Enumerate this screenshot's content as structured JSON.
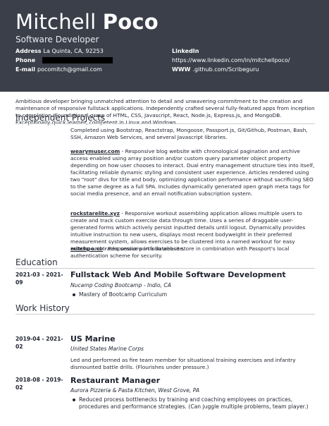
{
  "header": {
    "first_name": "Mitchell",
    "last_name": "Poco",
    "title": "Software Developer",
    "address_label": "Address",
    "address": "La Quinta, CA, 92253",
    "phone_label": "Phone",
    "email_label": "E-mail",
    "email": "pocomitch@gmail.com",
    "linkedin_label": "LinkedIn",
    "linkedin_url": "https://www.linkedin.com/in/mitchellpoco/",
    "www_label": "WWW",
    "www_url": ".github.com/Scribeguru"
  },
  "summary": "Ambitious developer bringing unmatched attention to detail and unwavering commitment to the creation and maintenance of responsive fullstack applications. Independently crafted several fully-featured apps from inception to completion. Foundational grasp of HTML, CSS, Javascript, React, Node.js, Express.js, and MongoDB. Exceptionally quick learner, competent in Linux and Windows.",
  "projects": {
    "heading": "Independent Projects",
    "intro": "Completed using Bootstrap, Reactstrap, Mongoose, Passport.js, Git/Github, Postman, Bash, SSH, Amazon Web Services, and several Javascript libraries.",
    "items": [
      {
        "link": "wearymuser.com",
        "text": "- Responsive blog website with chronological pagination and archive access enabled using array position and/or custom query parameter object property depending on how user chooses to interact. Dual entry management structure ties into itself, facilitating reliable dynamic styling and consistent user experience. Articles rendered using two \"root\" divs for title and body, optimizing application performance without sacrificing SEO to the same degree as a full SPA. Includes dynamically generated open graph meta tags for social media presence, and an email notification subscription system."
      },
      {
        "link": "rockstarelite.xyz",
        "text": "- Responsive workout assembling application allows multiple users to create and track custom exercise data through time. Uses a series of draggable user-generated forms which actively persist inputted details until logout. Dynamically provides intuitive instruction to new users, displays most recent bodyweight in their preferred measurement system, allows exercises to be clustered into a named workout for easy access, and tracks sessions in a database store in combination with Passport's local authentication scheme for security."
      },
      {
        "link": "mitchpo.co",
        "text": "- Responsive portfolio website."
      }
    ]
  },
  "education": {
    "heading": "Education",
    "entries": [
      {
        "dates": "2021-03 - 2021-09",
        "title": "Fullstack Web And Mobile Software Development",
        "org": "Nucamp Coding Bootcamp - Indio, CA",
        "bullets": [
          "Mastery of Bootcamp Curriculum"
        ]
      }
    ]
  },
  "work": {
    "heading": "Work History",
    "entries": [
      {
        "dates": "2019-04 - 2021-02",
        "title": "US Marine",
        "org": "United States Marine Corps",
        "desc": "Led and performed as fire team member for situational training exercises and infantry dismounted battle drills. (Flourishes under pressure.)"
      },
      {
        "dates": "2018-08 - 2019-02",
        "title": "Restaurant Manager",
        "org": "Aurora Pizzeria & Pasta Kitchen, West Grove, PA",
        "bullets": [
          "Reduced process bottlenecks by training and coaching employees on practices, procedures and performance strategies. (Can juggle multiple problems, team player.)"
        ]
      }
    ]
  }
}
